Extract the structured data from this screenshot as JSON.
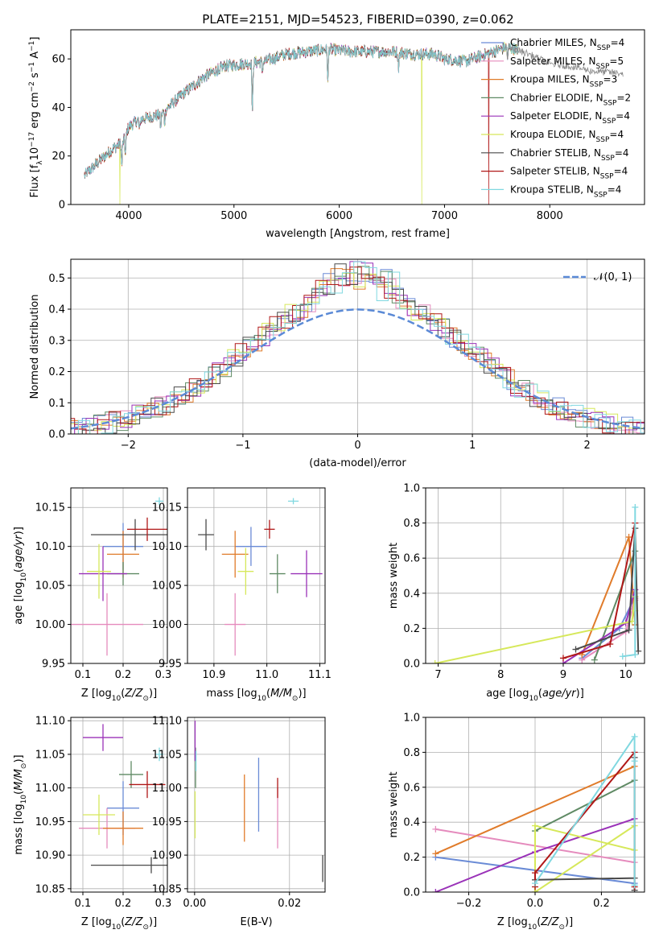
{
  "figure_title": "PLATE=2151, MJD=54523, FIBERID=0390, z=0.062",
  "series": [
    {
      "name": "Chabrier MILES",
      "nssp": "4",
      "color": "#6a8bd6"
    },
    {
      "name": "Salpeter MILES",
      "nssp": "5",
      "color": "#e58bbd"
    },
    {
      "name": "Kroupa MILES",
      "nssp": "3",
      "color": "#e07b2a"
    },
    {
      "name": "Chabrier ELODIE",
      "nssp": "2",
      "color": "#5f8a64"
    },
    {
      "name": "Salpeter ELODIE",
      "nssp": "4",
      "color": "#9a32b8"
    },
    {
      "name": "Kroupa ELODIE",
      "nssp": "4",
      "color": "#d6e85a"
    },
    {
      "name": "Chabrier STELIB",
      "nssp": "4",
      "color": "#4a4a4a"
    },
    {
      "name": "Salpeter STELIB",
      "nssp": "4",
      "color": "#b01818"
    },
    {
      "name": "Kroupa STELIB",
      "nssp": "4",
      "color": "#80d8e0"
    }
  ],
  "chart_data": [
    {
      "id": "spectrum",
      "type": "line",
      "xlabel": "wavelength [Angstrom, rest frame]",
      "ylabel": "Flux [f_λ 10^-17 erg cm^-2 s^-1 A^-1]",
      "xlim": [
        3450,
        8900
      ],
      "ylim": [
        0,
        72
      ],
      "xticks": [
        4000,
        5000,
        6000,
        7000,
        8000
      ],
      "yticks": [
        0,
        20,
        40,
        60
      ],
      "grid": false,
      "legend": "right",
      "continuum": [
        [
          3580,
          12
        ],
        [
          3700,
          17
        ],
        [
          3850,
          23
        ],
        [
          3950,
          26
        ],
        [
          4000,
          32
        ],
        [
          4100,
          35
        ],
        [
          4300,
          37
        ],
        [
          4500,
          45
        ],
        [
          4700,
          52
        ],
        [
          4900,
          57
        ],
        [
          5100,
          58
        ],
        [
          5300,
          59
        ],
        [
          5500,
          62
        ],
        [
          5700,
          63
        ],
        [
          5900,
          64
        ],
        [
          6100,
          63
        ],
        [
          6300,
          63
        ],
        [
          6500,
          63
        ],
        [
          6700,
          62
        ],
        [
          6900,
          62
        ],
        [
          7000,
          60
        ],
        [
          7200,
          59
        ],
        [
          7400,
          62
        ],
        [
          7600,
          65
        ],
        [
          7800,
          62
        ],
        [
          8000,
          58
        ],
        [
          8200,
          57
        ],
        [
          8400,
          55
        ],
        [
          8700,
          54
        ]
      ],
      "absorption_features": [
        [
          3934,
          10
        ],
        [
          3969,
          8
        ],
        [
          4102,
          5
        ],
        [
          4304,
          6
        ],
        [
          4341,
          5
        ],
        [
          4861,
          4
        ],
        [
          5175,
          22
        ],
        [
          5270,
          4
        ],
        [
          5892,
          14
        ],
        [
          6563,
          6
        ],
        [
          7600,
          5
        ]
      ],
      "spikes": [
        {
          "series": "Kroupa ELODIE",
          "x": 3915,
          "y": 0
        },
        {
          "series": "Kroupa ELODIE",
          "x": 6785,
          "y": 0
        },
        {
          "series": "Salpeter STELIB",
          "x": 7420,
          "y": 0
        }
      ]
    },
    {
      "id": "residual-histogram",
      "type": "histogram",
      "xlabel": "(data-model)/error",
      "ylabel": "Normed distribution",
      "xlim": [
        -2.5,
        2.5
      ],
      "ylim": [
        0,
        0.56
      ],
      "xticks": [
        -2,
        -1,
        0,
        1,
        2
      ],
      "yticks": [
        0.0,
        0.1,
        0.2,
        0.3,
        0.4,
        0.5
      ],
      "grid": true,
      "legend": "top-right",
      "reference_curve": {
        "label": "𝒩(0, 1)",
        "mean": 0,
        "sigma": 1,
        "color": "#5b8ad6",
        "style": "dashed"
      },
      "bin_width": 0.1
    },
    {
      "id": "age-vs-z",
      "type": "errorbar",
      "xlabel": "Z [log10(Z/Z⊙)]",
      "ylabel": "age [log10(age/yr)]",
      "xlim": [
        0.07,
        0.31
      ],
      "ylim": [
        9.95,
        10.175
      ],
      "xticks": [
        0.1,
        0.2,
        0.3
      ],
      "yticks": [
        9.95,
        10.0,
        10.05,
        10.1,
        10.15
      ],
      "grid": true,
      "points": [
        {
          "series": "Chabrier MILES",
          "x": 0.2,
          "y": 10.1,
          "xerr": 0.05,
          "yerr": 0.03
        },
        {
          "series": "Salpeter MILES",
          "x": 0.16,
          "y": 10.0,
          "xerr": 0.09,
          "yerr": 0.04
        },
        {
          "series": "Kroupa MILES",
          "x": 0.2,
          "y": 10.09,
          "xerr": 0.04,
          "yerr": 0.03
        },
        {
          "series": "Chabrier ELODIE",
          "x": 0.2,
          "y": 10.065,
          "xerr": 0.04,
          "yerr": 0.015
        },
        {
          "series": "Salpeter ELODIE",
          "x": 0.15,
          "y": 10.065,
          "xerr": 0.06,
          "yerr": 0.035
        },
        {
          "series": "Kroupa ELODIE",
          "x": 0.14,
          "y": 10.068,
          "xerr": 0.03,
          "yerr": 0.035
        },
        {
          "series": "Chabrier STELIB",
          "x": 0.23,
          "y": 10.115,
          "xerr": 0.11,
          "yerr": 0.02
        },
        {
          "series": "Salpeter STELIB",
          "x": 0.26,
          "y": 10.122,
          "xerr": 0.05,
          "yerr": 0.015
        },
        {
          "series": "Kroupa STELIB",
          "x": 0.29,
          "y": 10.158,
          "xerr": 0.01,
          "yerr": 0.005
        }
      ]
    },
    {
      "id": "age-vs-mass",
      "type": "errorbar",
      "xlabel": "mass [log10(M/M⊙)]",
      "ylabel": "",
      "xlim": [
        10.85,
        11.11
      ],
      "ylim": [
        9.95,
        10.175
      ],
      "xticks": [
        10.9,
        11.0,
        11.1
      ],
      "yticks": [
        9.95,
        10.0,
        10.05,
        10.1,
        10.15
      ],
      "grid": true,
      "points": [
        {
          "series": "Chabrier MILES",
          "x": 10.97,
          "y": 10.1,
          "xerr": 0.03,
          "yerr": 0.025
        },
        {
          "series": "Salpeter MILES",
          "x": 10.94,
          "y": 10.0,
          "xerr": 0.02,
          "yerr": 0.04
        },
        {
          "series": "Kroupa MILES",
          "x": 10.94,
          "y": 10.09,
          "xerr": 0.025,
          "yerr": 0.03
        },
        {
          "series": "Chabrier ELODIE",
          "x": 11.02,
          "y": 10.065,
          "xerr": 0.015,
          "yerr": 0.025
        },
        {
          "series": "Salpeter ELODIE",
          "x": 11.075,
          "y": 10.065,
          "xerr": 0.03,
          "yerr": 0.03
        },
        {
          "series": "Kroupa ELODIE",
          "x": 10.96,
          "y": 10.068,
          "xerr": 0.015,
          "yerr": 0.03
        },
        {
          "series": "Chabrier STELIB",
          "x": 10.885,
          "y": 10.115,
          "xerr": 0.015,
          "yerr": 0.02
        },
        {
          "series": "Salpeter STELIB",
          "x": 11.005,
          "y": 10.122,
          "xerr": 0.01,
          "yerr": 0.012
        },
        {
          "series": "Kroupa STELIB",
          "x": 11.05,
          "y": 10.158,
          "xerr": 0.01,
          "yerr": 0.004
        }
      ]
    },
    {
      "id": "weight-vs-age",
      "type": "line",
      "xlabel": "age [log10(age/yr)]",
      "ylabel": "mass weight",
      "xlim": [
        6.8,
        10.3
      ],
      "ylim": [
        0,
        1.0
      ],
      "xticks": [
        7,
        8,
        9,
        10
      ],
      "yticks": [
        0.0,
        0.2,
        0.4,
        0.6,
        0.8,
        1.0
      ],
      "grid": true,
      "lines": [
        {
          "series": "Chabrier MILES",
          "x": [
            9.3,
            9.9,
            10.15,
            10.15
          ],
          "y": [
            0.03,
            0.2,
            0.38,
            0.22
          ]
        },
        {
          "series": "Salpeter MILES",
          "x": [
            9.3,
            10.0,
            10.15,
            10.1,
            10.15
          ],
          "y": [
            0.02,
            0.18,
            0.36,
            0.31,
            0.37
          ]
        },
        {
          "series": "Kroupa MILES",
          "x": [
            9.3,
            10.05,
            10.15
          ],
          "y": [
            0.05,
            0.72,
            0.22
          ]
        },
        {
          "series": "Chabrier ELODIE",
          "x": [
            9.5,
            10.15
          ],
          "y": [
            0.02,
            0.64
          ]
        },
        {
          "series": "Salpeter ELODIE",
          "x": [
            9.0,
            10.0,
            10.15
          ],
          "y": [
            0.0,
            0.23,
            0.42
          ]
        },
        {
          "series": "Kroupa ELODIE",
          "x": [
            6.95,
            10.1,
            10.15,
            10.15
          ],
          "y": [
            0.0,
            0.24,
            0.38,
            0.3
          ]
        },
        {
          "series": "Chabrier STELIB",
          "x": [
            9.2,
            10.05,
            10.15,
            10.2
          ],
          "y": [
            0.08,
            0.19,
            0.77,
            0.07
          ]
        },
        {
          "series": "Salpeter STELIB",
          "x": [
            9.0,
            9.75,
            10.15
          ],
          "y": [
            0.03,
            0.11,
            0.8
          ]
        },
        {
          "series": "Kroupa STELIB",
          "x": [
            9.95,
            10.15,
            10.15
          ],
          "y": [
            0.04,
            0.05,
            0.89
          ]
        }
      ]
    },
    {
      "id": "mass-vs-z",
      "type": "errorbar",
      "xlabel": "Z [log10(Z/Z⊙)]",
      "ylabel": "mass [log10(M/M⊙)]",
      "xlim": [
        0.07,
        0.31
      ],
      "ylim": [
        10.845,
        11.105
      ],
      "xticks": [
        0.1,
        0.2,
        0.3
      ],
      "yticks": [
        10.85,
        10.9,
        10.95,
        11.0,
        11.05,
        11.1
      ],
      "grid": true,
      "points": [
        {
          "series": "Chabrier MILES",
          "x": 0.2,
          "y": 10.97,
          "xerr": 0.04,
          "yerr": 0.04
        },
        {
          "series": "Salpeter MILES",
          "x": 0.16,
          "y": 10.94,
          "xerr": 0.07,
          "yerr": 0.03
        },
        {
          "series": "Kroupa MILES",
          "x": 0.2,
          "y": 10.94,
          "xerr": 0.05,
          "yerr": 0.025
        },
        {
          "series": "Chabrier ELODIE",
          "x": 0.22,
          "y": 11.02,
          "xerr": 0.03,
          "yerr": 0.02
        },
        {
          "series": "Salpeter ELODIE",
          "x": 0.15,
          "y": 11.075,
          "xerr": 0.05,
          "yerr": 0.02
        },
        {
          "series": "Kroupa ELODIE",
          "x": 0.14,
          "y": 10.96,
          "xerr": 0.04,
          "yerr": 0.03
        },
        {
          "series": "Chabrier STELIB",
          "x": 0.27,
          "y": 10.885,
          "xerr": 0.15,
          "yerr": 0.012
        },
        {
          "series": "Salpeter STELIB",
          "x": 0.26,
          "y": 11.005,
          "xerr": 0.045,
          "yerr": 0.02
        },
        {
          "series": "Kroupa STELIB",
          "x": 0.29,
          "y": 11.05,
          "xerr": 0.01,
          "yerr": 0.01
        }
      ]
    },
    {
      "id": "mass-vs-ebv",
      "type": "errorbar",
      "xlabel": "E(B-V)",
      "ylabel": "",
      "xlim": [
        -0.0015,
        0.0275
      ],
      "ylim": [
        10.845,
        11.105
      ],
      "xticks": [
        0.0,
        0.02
      ],
      "yticks": [
        10.85,
        10.9,
        10.95,
        11.0,
        11.05,
        11.1
      ],
      "grid": true,
      "points": [
        {
          "series": "Chabrier MILES",
          "x": 0.0135,
          "y": 10.99,
          "xerr": 0.0,
          "yerr": 0.055
        },
        {
          "series": "Salpeter MILES",
          "x": 0.0175,
          "y": 10.955,
          "xerr": 0.0,
          "yerr": 0.045
        },
        {
          "series": "Kroupa MILES",
          "x": 0.0105,
          "y": 10.97,
          "xerr": 0.0,
          "yerr": 0.05
        },
        {
          "series": "Chabrier ELODIE",
          "x": 0.0002,
          "y": 11.03,
          "xerr": 0.0,
          "yerr": 0.03
        },
        {
          "series": "Salpeter ELODIE",
          "x": 0.0001,
          "y": 11.07,
          "xerr": 0.0,
          "yerr": 0.03
        },
        {
          "series": "Kroupa ELODIE",
          "x": 0.0001,
          "y": 10.96,
          "xerr": 0.0,
          "yerr": 0.035
        },
        {
          "series": "Chabrier STELIB",
          "x": 0.027,
          "y": 10.88,
          "xerr": 0.0,
          "yerr": 0.02
        },
        {
          "series": "Salpeter STELIB",
          "x": 0.0175,
          "y": 11.0,
          "xerr": 0.0,
          "yerr": 0.015
        },
        {
          "series": "Kroupa STELIB",
          "x": 0.0003,
          "y": 11.04,
          "xerr": 0.0,
          "yerr": 0.015
        }
      ]
    },
    {
      "id": "weight-vs-z",
      "type": "line",
      "xlabel": "Z [log10(Z/Z⊙)]",
      "ylabel": "mass weight",
      "xlim": [
        -0.33,
        0.33
      ],
      "ylim": [
        0,
        1.0
      ],
      "xticks": [
        -0.2,
        0.0,
        0.2
      ],
      "yticks": [
        0.0,
        0.2,
        0.4,
        0.6,
        0.8,
        1.0
      ],
      "grid": true,
      "lines": [
        {
          "series": "Chabrier MILES",
          "x": [
            -0.3,
            0.3
          ],
          "y": [
            0.2,
            0.05
          ]
        },
        {
          "series": "Salpeter MILES",
          "x": [
            -0.3,
            0.3
          ],
          "y": [
            0.36,
            0.17
          ]
        },
        {
          "series": "Kroupa MILES",
          "x": [
            -0.3,
            0.3
          ],
          "y": [
            0.22,
            0.72
          ]
        },
        {
          "series": "Chabrier ELODIE",
          "x": [
            0.0,
            0.3
          ],
          "y": [
            0.35,
            0.64
          ]
        },
        {
          "series": "Salpeter ELODIE",
          "x": [
            -0.3,
            0.0,
            0.3
          ],
          "y": [
            0.0,
            0.23,
            0.42
          ]
        },
        {
          "series": "Kroupa ELODIE",
          "x": [
            0.0,
            0.0,
            0.3,
            0.3,
            0.0
          ],
          "y": [
            0.0,
            0.38,
            0.24,
            0.38,
            0.0
          ]
        },
        {
          "series": "Chabrier STELIB",
          "x": [
            0.0,
            0.3,
            0.3,
            0.3
          ],
          "y": [
            0.07,
            0.08,
            0.77,
            0.01
          ]
        },
        {
          "series": "Salpeter STELIB",
          "x": [
            0.0,
            0.0,
            0.3,
            0.3
          ],
          "y": [
            0.03,
            0.11,
            0.8,
            0.03
          ]
        },
        {
          "series": "Kroupa STELIB",
          "x": [
            0.0,
            0.3,
            0.3,
            0.3
          ],
          "y": [
            0.05,
            0.89,
            0.04,
            0.75
          ]
        }
      ]
    }
  ]
}
